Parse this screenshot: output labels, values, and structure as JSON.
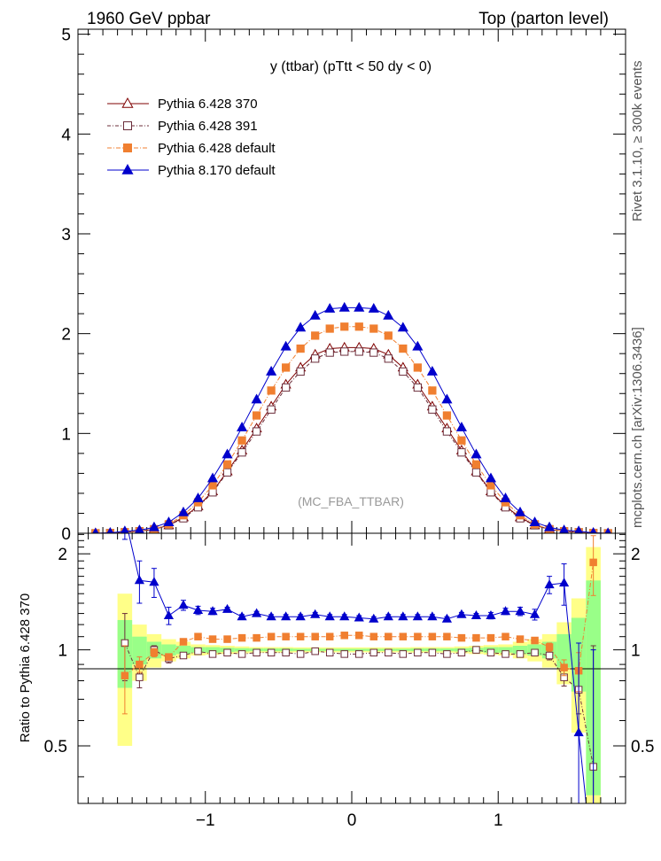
{
  "header": {
    "left": "1960 GeV ppbar",
    "right": "Top (parton level)"
  },
  "side_text": {
    "rivet": "Rivet 3.1.10, ≥ 300k events",
    "mcplots": "mcplots.cern.ch [arXiv:1306.3436]"
  },
  "colors": {
    "p6_370": "#7f0000",
    "p6_391": "#6b2d3a",
    "p6_default": "#f07f30",
    "p8_default": "#0000cc",
    "band_green": "#99ff88",
    "band_yellow": "#ffff88"
  },
  "chart_data": [
    {
      "type": "line",
      "title": "y (ttbar) (pTtt < 50 dy < 0)",
      "watermark": "(MC_FBA_TTBAR)",
      "xlim": [
        -1.87,
        1.87
      ],
      "ylim": [
        0,
        5.05
      ],
      "yticks": [
        "0",
        "1",
        "2",
        "3",
        "4",
        "5"
      ],
      "x": [
        -1.75,
        -1.65,
        -1.55,
        -1.45,
        -1.35,
        -1.25,
        -1.15,
        -1.05,
        -0.95,
        -0.85,
        -0.75,
        -0.65,
        -0.55,
        -0.45,
        -0.35,
        -0.25,
        -0.15,
        -0.05,
        0.05,
        0.15,
        0.25,
        0.35,
        0.45,
        0.55,
        0.65,
        0.75,
        0.85,
        0.95,
        1.05,
        1.15,
        1.25,
        1.35,
        1.45,
        1.55,
        1.65,
        1.75
      ],
      "series": [
        {
          "name": "Pythia 6.428 370",
          "color_key": "p6_370",
          "marker": "triangle-open",
          "values": [
            0.0,
            0.002,
            0.01,
            0.02,
            0.04,
            0.08,
            0.16,
            0.27,
            0.42,
            0.62,
            0.83,
            1.05,
            1.27,
            1.49,
            1.66,
            1.79,
            1.85,
            1.86,
            1.86,
            1.85,
            1.79,
            1.66,
            1.49,
            1.27,
            1.05,
            0.83,
            0.62,
            0.42,
            0.27,
            0.16,
            0.08,
            0.04,
            0.02,
            0.01,
            0.002,
            0.0
          ]
        },
        {
          "name": "Pythia 6.428 391",
          "color_key": "p6_391",
          "marker": "square-open",
          "values": [
            0.0,
            0.002,
            0.01,
            0.02,
            0.04,
            0.08,
            0.15,
            0.26,
            0.41,
            0.61,
            0.81,
            1.02,
            1.24,
            1.46,
            1.62,
            1.75,
            1.81,
            1.82,
            1.82,
            1.81,
            1.75,
            1.62,
            1.46,
            1.24,
            1.02,
            0.81,
            0.61,
            0.41,
            0.26,
            0.15,
            0.08,
            0.04,
            0.02,
            0.01,
            0.002,
            0.0
          ]
        },
        {
          "name": "Pythia 6.428 default",
          "color_key": "p6_default",
          "marker": "square-filled",
          "values": [
            0.0,
            0.002,
            0.01,
            0.02,
            0.04,
            0.09,
            0.18,
            0.31,
            0.48,
            0.69,
            0.93,
            1.18,
            1.43,
            1.66,
            1.85,
            1.98,
            2.05,
            2.07,
            2.07,
            2.05,
            1.98,
            1.85,
            1.66,
            1.43,
            1.18,
            0.93,
            0.69,
            0.48,
            0.31,
            0.18,
            0.09,
            0.04,
            0.02,
            0.01,
            0.002,
            0.0
          ]
        },
        {
          "name": "Pythia 8.170 default",
          "color_key": "p8_default",
          "marker": "triangle-filled",
          "values": [
            0.0,
            0.004,
            0.02,
            0.03,
            0.06,
            0.11,
            0.21,
            0.35,
            0.55,
            0.79,
            1.06,
            1.34,
            1.62,
            1.87,
            2.06,
            2.18,
            2.25,
            2.26,
            2.26,
            2.25,
            2.18,
            2.06,
            1.87,
            1.62,
            1.34,
            1.06,
            0.79,
            0.55,
            0.35,
            0.21,
            0.11,
            0.06,
            0.03,
            0.02,
            0.004,
            0.0
          ]
        }
      ]
    },
    {
      "type": "line",
      "ylabel": "Ratio to Pythia 6.428 370",
      "xlim": [
        -1.87,
        1.87
      ],
      "ylim": [
        0.33,
        2.32
      ],
      "xticks": [
        "−1",
        "0",
        "1"
      ],
      "yticks": [
        "0.5",
        "1",
        "2"
      ],
      "x": [
        -1.55,
        -1.45,
        -1.35,
        -1.25,
        -1.15,
        -1.05,
        -0.95,
        -0.85,
        -0.75,
        -0.65,
        -0.55,
        -0.45,
        -0.35,
        -0.25,
        -0.15,
        -0.05,
        0.05,
        0.15,
        0.25,
        0.35,
        0.45,
        0.55,
        0.65,
        0.75,
        0.85,
        0.95,
        1.05,
        1.15,
        1.25,
        1.35,
        1.45,
        1.55,
        1.65
      ],
      "band_x": [
        -1.6,
        -1.5,
        -1.4,
        -1.3,
        -1.2,
        -1.1,
        -1.0,
        -0.9,
        -0.8,
        -0.7,
        -0.6,
        -0.5,
        -0.4,
        -0.3,
        -0.2,
        -0.1,
        0.0,
        0.1,
        0.2,
        0.3,
        0.4,
        0.5,
        0.6,
        0.7,
        0.8,
        0.9,
        1.0,
        1.1,
        1.2,
        1.3,
        1.4,
        1.5,
        1.6,
        1.7
      ],
      "band_green": [
        0.24,
        0.1,
        0.06,
        0.04,
        0.03,
        0.02,
        0.02,
        0.015,
        0.012,
        0.01,
        0.01,
        0.01,
        0.008,
        0.008,
        0.008,
        0.008,
        0.008,
        0.008,
        0.008,
        0.008,
        0.01,
        0.01,
        0.01,
        0.012,
        0.015,
        0.02,
        0.02,
        0.03,
        0.04,
        0.06,
        0.12,
        0.26,
        0.65
      ],
      "band_yellow": [
        0.5,
        0.2,
        0.12,
        0.08,
        0.06,
        0.04,
        0.035,
        0.03,
        0.025,
        0.02,
        0.02,
        0.02,
        0.018,
        0.018,
        0.018,
        0.018,
        0.018,
        0.018,
        0.018,
        0.018,
        0.02,
        0.02,
        0.02,
        0.025,
        0.03,
        0.035,
        0.04,
        0.06,
        0.08,
        0.12,
        0.22,
        0.45,
        1.1
      ],
      "series": [
        {
          "name": "Pythia 6.428 391",
          "color_key": "p6_391",
          "marker": "square-open",
          "values": [
            1.05,
            0.82,
            1.0,
            0.94,
            0.96,
            0.99,
            0.97,
            0.98,
            0.97,
            0.98,
            0.98,
            0.98,
            0.97,
            0.99,
            0.98,
            0.97,
            0.97,
            0.98,
            0.98,
            0.97,
            0.98,
            0.98,
            0.97,
            0.98,
            1.0,
            0.98,
            0.97,
            0.97,
            0.98,
            0.96,
            0.82,
            0.75,
            0.43
          ],
          "errors": [
            0.25,
            0.06,
            0.03,
            0.03,
            0.02,
            0.02,
            0.01,
            0.01,
            0.01,
            0.01,
            0.01,
            0.01,
            0.01,
            0.01,
            0.01,
            0.01,
            0.01,
            0.01,
            0.01,
            0.01,
            0.01,
            0.01,
            0.01,
            0.01,
            0.01,
            0.01,
            0.01,
            0.02,
            0.02,
            0.03,
            0.05,
            0.12,
            0.6
          ]
        },
        {
          "name": "Pythia 6.428 default",
          "color_key": "p6_default",
          "marker": "square-filled",
          "values": [
            0.83,
            0.9,
            0.98,
            0.95,
            1.06,
            1.1,
            1.08,
            1.08,
            1.09,
            1.09,
            1.1,
            1.1,
            1.1,
            1.1,
            1.1,
            1.11,
            1.11,
            1.1,
            1.1,
            1.1,
            1.1,
            1.1,
            1.1,
            1.09,
            1.09,
            1.09,
            1.1,
            1.08,
            1.07,
            1.02,
            0.88,
            0.86,
            1.88
          ],
          "errors": [
            0.2,
            0.05,
            0.03,
            0.02,
            0.02,
            0.01,
            0.01,
            0.01,
            0.01,
            0.01,
            0.01,
            0.01,
            0.01,
            0.01,
            0.01,
            0.01,
            0.01,
            0.01,
            0.01,
            0.01,
            0.01,
            0.01,
            0.01,
            0.01,
            0.01,
            0.01,
            0.01,
            0.01,
            0.02,
            0.03,
            0.05,
            0.12,
            0.4
          ]
        },
        {
          "name": "Pythia 8.170 default",
          "color_key": "p8_default",
          "marker": "triangle-filled",
          "values": [
            2.62,
            1.65,
            1.63,
            1.28,
            1.38,
            1.33,
            1.32,
            1.34,
            1.27,
            1.3,
            1.27,
            1.27,
            1.27,
            1.29,
            1.27,
            1.27,
            1.26,
            1.25,
            1.27,
            1.27,
            1.27,
            1.27,
            1.25,
            1.29,
            1.28,
            1.28,
            1.32,
            1.32,
            1.29,
            1.6,
            1.62,
            0.55,
            0.2
          ],
          "errors": [
            0.4,
            0.25,
            0.17,
            0.08,
            0.05,
            0.04,
            0.03,
            0.02,
            0.02,
            0.02,
            0.02,
            0.02,
            0.02,
            0.02,
            0.02,
            0.02,
            0.02,
            0.02,
            0.02,
            0.02,
            0.02,
            0.02,
            0.02,
            0.02,
            0.02,
            0.03,
            0.03,
            0.04,
            0.05,
            0.1,
            0.24,
            0.5,
            0.8
          ]
        }
      ]
    }
  ]
}
